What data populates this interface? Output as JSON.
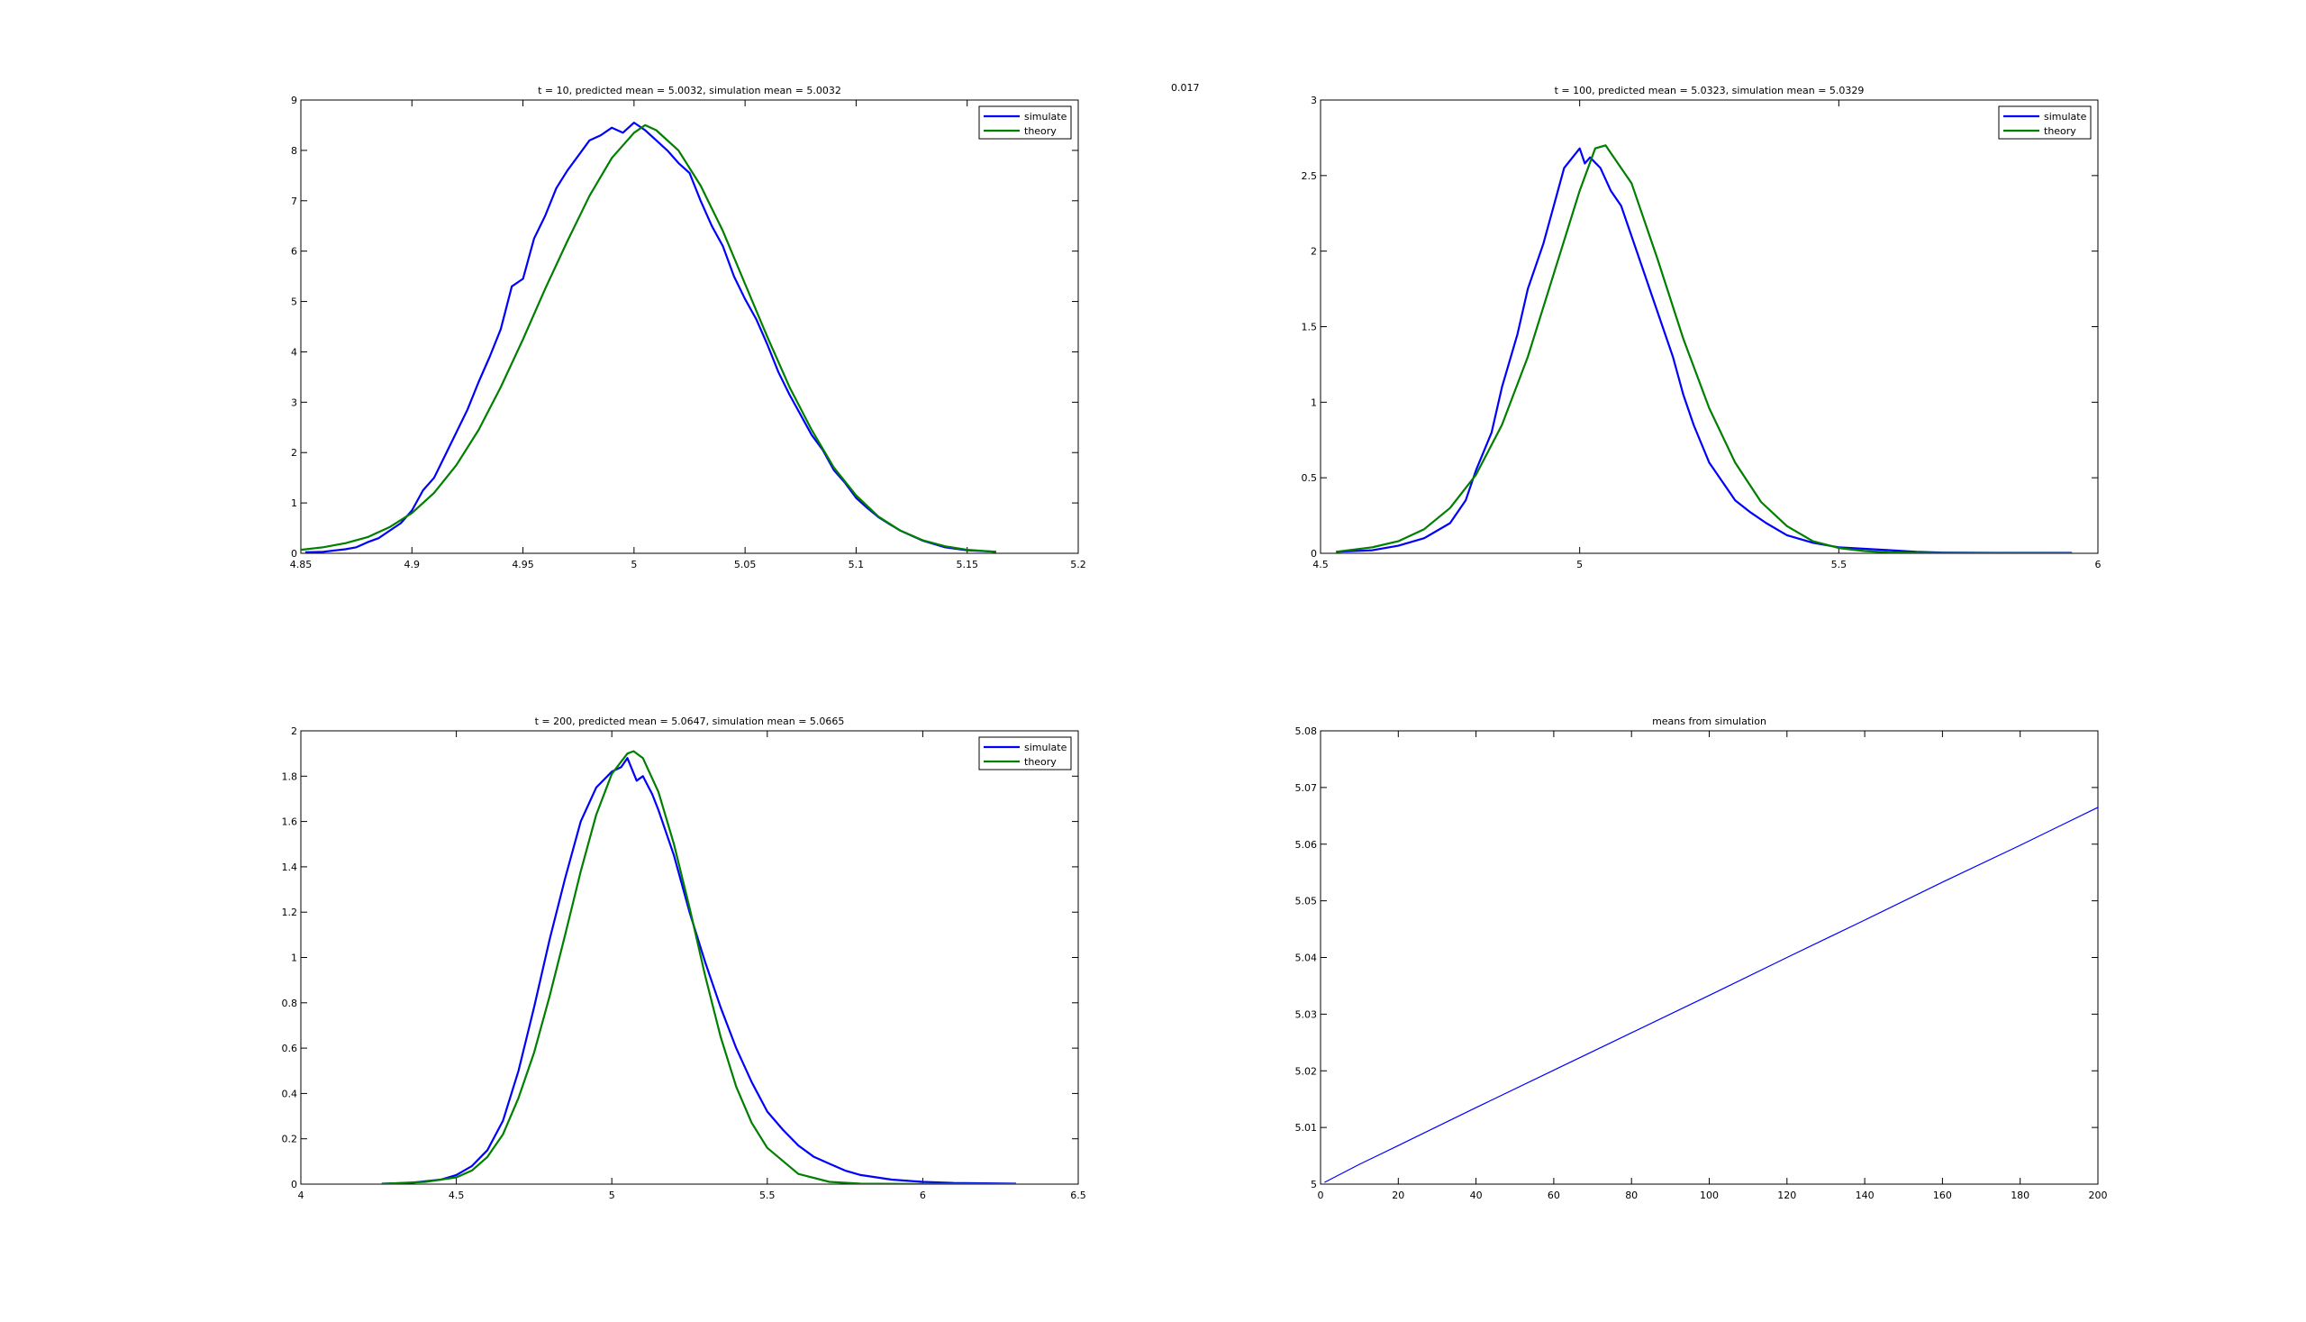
{
  "stray_label": "0.017",
  "colors": {
    "simulate": "#0000ff",
    "theory": "#007f00",
    "means": "#0000ff",
    "axes": "#000000"
  },
  "chart_data": [
    {
      "type": "line",
      "title": "t = 10,  predicted mean = 5.0032,  simulation mean = 5.0032",
      "xlim": [
        4.85,
        5.2
      ],
      "ylim": [
        0,
        9
      ],
      "xticks": [
        4.85,
        4.9,
        4.95,
        5,
        5.05,
        5.1,
        5.15,
        5.2
      ],
      "xticklabels": [
        "4.85",
        "4.9",
        "4.95",
        "5",
        "5.05",
        "5.1",
        "5.15",
        "5.2"
      ],
      "yticks": [
        0,
        1,
        2,
        3,
        4,
        5,
        6,
        7,
        8,
        9
      ],
      "yticklabels": [
        "0",
        "1",
        "2",
        "3",
        "4",
        "5",
        "6",
        "7",
        "8",
        "9"
      ],
      "legend": "top-right",
      "series": [
        {
          "name": "simulate",
          "color": "#0000ff",
          "x": [
            4.852,
            4.86,
            4.87,
            4.875,
            4.88,
            4.885,
            4.89,
            4.895,
            4.9,
            4.905,
            4.91,
            4.915,
            4.92,
            4.925,
            4.93,
            4.935,
            4.94,
            4.945,
            4.95,
            4.955,
            4.96,
            4.965,
            4.97,
            4.975,
            4.98,
            4.985,
            4.99,
            4.995,
            5.0,
            5.005,
            5.01,
            5.015,
            5.02,
            5.025,
            5.03,
            5.035,
            5.04,
            5.045,
            5.05,
            5.055,
            5.06,
            5.065,
            5.07,
            5.075,
            5.08,
            5.085,
            5.09,
            5.095,
            5.1,
            5.105,
            5.11,
            5.115,
            5.12,
            5.13,
            5.14,
            5.15,
            5.163
          ],
          "y": [
            0.02,
            0.03,
            0.08,
            0.12,
            0.22,
            0.3,
            0.45,
            0.6,
            0.85,
            1.25,
            1.5,
            1.95,
            2.4,
            2.85,
            3.4,
            3.9,
            4.45,
            5.3,
            5.45,
            6.25,
            6.7,
            7.25,
            7.6,
            7.9,
            8.2,
            8.3,
            8.45,
            8.35,
            8.55,
            8.4,
            8.2,
            8.0,
            7.75,
            7.55,
            7.0,
            6.5,
            6.1,
            5.5,
            5.05,
            4.65,
            4.15,
            3.6,
            3.15,
            2.75,
            2.35,
            2.05,
            1.65,
            1.4,
            1.1,
            0.9,
            0.72,
            0.58,
            0.45,
            0.25,
            0.12,
            0.06,
            0.03
          ]
        },
        {
          "name": "theory",
          "color": "#007f00",
          "x": [
            4.85,
            4.86,
            4.87,
            4.88,
            4.89,
            4.9,
            4.91,
            4.92,
            4.93,
            4.94,
            4.95,
            4.96,
            4.97,
            4.98,
            4.99,
            5.0,
            5.005,
            5.01,
            5.02,
            5.03,
            5.04,
            5.05,
            5.06,
            5.07,
            5.08,
            5.09,
            5.1,
            5.11,
            5.12,
            5.13,
            5.14,
            5.15,
            5.163
          ],
          "y": [
            0.07,
            0.12,
            0.2,
            0.32,
            0.52,
            0.8,
            1.2,
            1.75,
            2.45,
            3.3,
            4.25,
            5.25,
            6.2,
            7.1,
            7.85,
            8.35,
            8.5,
            8.4,
            8.0,
            7.3,
            6.4,
            5.35,
            4.3,
            3.3,
            2.45,
            1.7,
            1.15,
            0.73,
            0.45,
            0.26,
            0.14,
            0.07,
            0.03
          ]
        }
      ]
    },
    {
      "type": "line",
      "title": "t = 100,  predicted mean = 5.0323,  simulation mean = 5.0329",
      "xlim": [
        4.5,
        6
      ],
      "ylim": [
        0,
        3
      ],
      "xticks": [
        4.5,
        5,
        5.5,
        6
      ],
      "xticklabels": [
        "4.5",
        "5",
        "5.5",
        "6"
      ],
      "yticks": [
        0,
        0.5,
        1,
        1.5,
        2,
        2.5,
        3
      ],
      "yticklabels": [
        "0",
        "0.5",
        "1",
        "1.5",
        "2",
        "2.5",
        "3"
      ],
      "legend": "top-right",
      "series": [
        {
          "name": "simulate",
          "color": "#0000ff",
          "x": [
            4.53,
            4.6,
            4.65,
            4.7,
            4.75,
            4.78,
            4.8,
            4.83,
            4.85,
            4.88,
            4.9,
            4.93,
            4.95,
            4.97,
            5.0,
            5.01,
            5.02,
            5.04,
            5.06,
            5.08,
            5.1,
            5.12,
            5.14,
            5.16,
            5.18,
            5.2,
            5.22,
            5.25,
            5.28,
            5.3,
            5.33,
            5.36,
            5.4,
            5.45,
            5.5,
            5.55,
            5.6,
            5.65,
            5.7,
            5.8,
            5.95
          ],
          "y": [
            0.01,
            0.02,
            0.05,
            0.1,
            0.2,
            0.35,
            0.55,
            0.8,
            1.1,
            1.45,
            1.75,
            2.05,
            2.3,
            2.55,
            2.68,
            2.58,
            2.62,
            2.55,
            2.4,
            2.3,
            2.1,
            1.9,
            1.7,
            1.5,
            1.3,
            1.05,
            0.85,
            0.6,
            0.45,
            0.35,
            0.27,
            0.2,
            0.12,
            0.07,
            0.04,
            0.03,
            0.02,
            0.01,
            0.005,
            0.003,
            0.003
          ]
        },
        {
          "name": "theory",
          "color": "#007f00",
          "x": [
            4.53,
            4.6,
            4.65,
            4.7,
            4.75,
            4.8,
            4.85,
            4.9,
            4.95,
            5.0,
            5.03,
            5.05,
            5.1,
            5.15,
            5.2,
            5.25,
            5.3,
            5.35,
            5.4,
            5.45,
            5.5,
            5.55,
            5.6,
            5.7,
            5.95
          ],
          "y": [
            0.01,
            0.04,
            0.08,
            0.16,
            0.3,
            0.52,
            0.85,
            1.3,
            1.85,
            2.4,
            2.68,
            2.7,
            2.45,
            1.95,
            1.42,
            0.96,
            0.6,
            0.34,
            0.18,
            0.08,
            0.035,
            0.015,
            0.006,
            0.002,
            0.001
          ]
        }
      ]
    },
    {
      "type": "line",
      "title": "t = 200,  predicted mean = 5.0647,  simulation mean = 5.0665",
      "xlim": [
        4,
        6.5
      ],
      "ylim": [
        0,
        2
      ],
      "xticks": [
        4,
        4.5,
        5,
        5.5,
        6,
        6.5
      ],
      "xticklabels": [
        "4",
        "4.5",
        "5",
        "5.5",
        "6",
        "6.5"
      ],
      "yticks": [
        0,
        0.2,
        0.4,
        0.6,
        0.8,
        1,
        1.2,
        1.4,
        1.6,
        1.8,
        2
      ],
      "yticklabels": [
        "0",
        "0.2",
        "0.4",
        "0.6",
        "0.8",
        "1",
        "1.2",
        "1.4",
        "1.6",
        "1.8",
        "2"
      ],
      "legend": "top-right",
      "series": [
        {
          "name": "simulate",
          "color": "#0000ff",
          "x": [
            4.26,
            4.35,
            4.45,
            4.5,
            4.55,
            4.6,
            4.65,
            4.7,
            4.75,
            4.8,
            4.85,
            4.9,
            4.95,
            5.0,
            5.03,
            5.05,
            5.08,
            5.1,
            5.13,
            5.15,
            5.2,
            5.25,
            5.3,
            5.35,
            5.4,
            5.45,
            5.5,
            5.55,
            5.6,
            5.65,
            5.7,
            5.75,
            5.8,
            5.9,
            6.0,
            6.1,
            6.3
          ],
          "y": [
            0.002,
            0.005,
            0.02,
            0.04,
            0.08,
            0.15,
            0.28,
            0.5,
            0.78,
            1.08,
            1.35,
            1.6,
            1.75,
            1.82,
            1.84,
            1.88,
            1.78,
            1.8,
            1.72,
            1.65,
            1.45,
            1.2,
            0.98,
            0.78,
            0.6,
            0.45,
            0.32,
            0.24,
            0.17,
            0.12,
            0.09,
            0.06,
            0.04,
            0.02,
            0.01,
            0.005,
            0.002
          ]
        },
        {
          "name": "theory",
          "color": "#007f00",
          "x": [
            4.26,
            4.4,
            4.5,
            4.55,
            4.6,
            4.65,
            4.7,
            4.75,
            4.8,
            4.85,
            4.9,
            4.95,
            5.0,
            5.05,
            5.07,
            5.1,
            5.15,
            5.2,
            5.25,
            5.3,
            5.35,
            5.4,
            5.45,
            5.5,
            5.6,
            5.7,
            5.8,
            6.0,
            6.3
          ],
          "y": [
            0.001,
            0.01,
            0.03,
            0.06,
            0.12,
            0.22,
            0.38,
            0.58,
            0.83,
            1.1,
            1.38,
            1.63,
            1.81,
            1.9,
            1.91,
            1.88,
            1.73,
            1.5,
            1.22,
            0.92,
            0.65,
            0.43,
            0.27,
            0.16,
            0.045,
            0.01,
            0.002,
            0.0003,
            0.0001
          ]
        }
      ]
    },
    {
      "type": "line",
      "title": "means from simulation",
      "xlim": [
        0,
        200
      ],
      "ylim": [
        5,
        5.08
      ],
      "xticks": [
        0,
        20,
        40,
        60,
        80,
        100,
        120,
        140,
        160,
        180,
        200
      ],
      "xticklabels": [
        "0",
        "20",
        "40",
        "60",
        "80",
        "100",
        "120",
        "140",
        "160",
        "180",
        "200"
      ],
      "yticks": [
        5,
        5.01,
        5.02,
        5.03,
        5.04,
        5.05,
        5.06,
        5.07,
        5.08
      ],
      "yticklabels": [
        "5",
        "5.01",
        "5.02",
        "5.03",
        "5.04",
        "5.05",
        "5.06",
        "5.07",
        "5.08"
      ],
      "series": [
        {
          "name": "",
          "color": "#0000ff",
          "x": [
            1,
            10,
            20,
            40,
            60,
            80,
            100,
            120,
            140,
            160,
            180,
            200
          ],
          "y": [
            5.0003,
            5.0035,
            5.0068,
            5.0135,
            5.0201,
            5.0267,
            5.0333,
            5.04,
            5.0466,
            5.0533,
            5.0598,
            5.0665
          ]
        }
      ]
    }
  ]
}
